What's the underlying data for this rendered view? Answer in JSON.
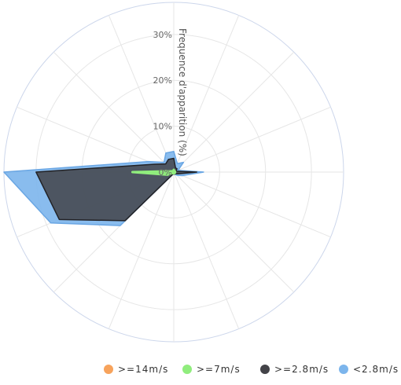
{
  "chart_data": {
    "type": "polar-area",
    "yaxis_title": "Frequence d'apparition (%)",
    "r_ticks": [
      0,
      10,
      20,
      30
    ],
    "r_tick_labels": [
      "0%",
      "10%",
      "20%",
      "30%"
    ],
    "r_max": 37,
    "direction_count": 16,
    "series": [
      {
        "name": "<2.8m/s",
        "color": "#7cb5ec",
        "values": [
          4.5,
          2,
          3,
          1,
          6.5,
          2,
          1,
          0.5,
          0.5,
          0.5,
          16.5,
          29,
          37,
          6,
          3,
          4.5
        ]
      },
      {
        "name": ">=2.8m/s",
        "color": "#434348",
        "values": [
          3,
          1,
          1,
          0.5,
          5,
          1,
          0.5,
          0.5,
          0.5,
          0.5,
          15,
          27,
          30,
          4.5,
          2.5,
          3
        ]
      },
      {
        "name": ">=7m/s",
        "color": "#90ed7d",
        "values": [
          0.5,
          0.3,
          0.3,
          0.3,
          0.3,
          0.3,
          0.3,
          0.3,
          0.3,
          0.3,
          0.3,
          1.5,
          9,
          0.5,
          0.3,
          0.3
        ]
      },
      {
        "name": ">=14m/s",
        "color": "#f7a35c",
        "values": [
          0,
          0,
          0,
          0,
          0,
          0,
          0,
          0,
          0,
          0,
          0,
          0,
          0,
          0,
          0,
          0
        ]
      }
    ],
    "legend_position": "bottom-right",
    "grid": true
  }
}
